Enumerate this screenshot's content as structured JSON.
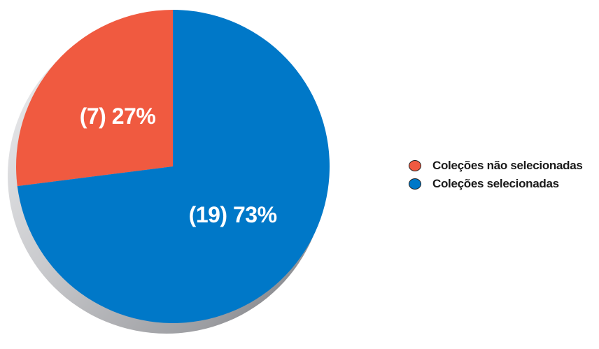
{
  "chart_data": {
    "type": "pie",
    "title": "",
    "slices": [
      {
        "name": "Coleções não selecionadas",
        "count": 7,
        "percent": 27,
        "label": "(7) 27%",
        "color": "#f05a40"
      },
      {
        "name": "Coleções selecionadas",
        "count": 19,
        "percent": 73,
        "label": "(19) 73%",
        "color": "#0078c8"
      }
    ],
    "start_angle": "12 o'clock",
    "direction": "counter-clockwise",
    "legend_position": "right",
    "style": "3d-shadow"
  },
  "legend": {
    "items": [
      {
        "label": "Coleções não selecionadas",
        "color": "#f05a40"
      },
      {
        "label": "Coleções selecionadas",
        "color": "#0078c8"
      }
    ]
  }
}
